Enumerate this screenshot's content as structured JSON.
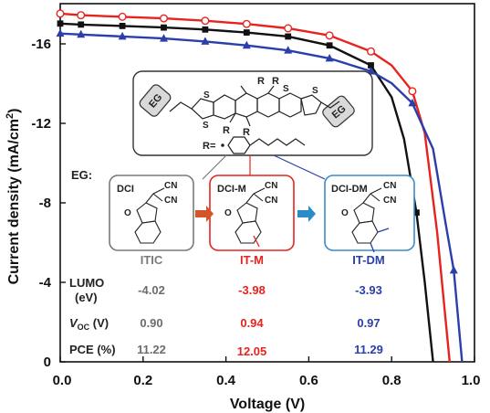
{
  "chart_data": {
    "type": "line",
    "xlabel": "Voltage (V)",
    "ylabel": "Current density (mA/cm",
    "ylabel_sup": "2",
    "ylabel_close": ")",
    "xlim": [
      0.0,
      1.0
    ],
    "ylim": [
      0,
      -18
    ],
    "x_ticks": [
      "0.0",
      "0.2",
      "0.4",
      "0.6",
      "0.8",
      "1.0"
    ],
    "y_ticks": [
      "0",
      "-4",
      "-8",
      "-12",
      "-16"
    ],
    "series": [
      {
        "color": "#e8231f",
        "marker": "open-circle",
        "x": [
          0.0,
          0.05,
          0.15,
          0.25,
          0.35,
          0.45,
          0.55,
          0.65,
          0.75,
          0.8,
          0.85,
          0.88,
          0.91,
          0.94
        ],
        "y": [
          -17.5,
          -17.42,
          -17.34,
          -17.26,
          -17.14,
          -16.98,
          -16.76,
          -16.4,
          -15.6,
          -14.9,
          -13.6,
          -11.5,
          -6.5,
          0.0
        ],
        "marker_x": [
          0.0,
          0.05,
          0.15,
          0.25,
          0.35,
          0.45,
          0.55,
          0.65,
          0.75,
          0.85
        ]
      },
      {
        "color": "#111111",
        "marker": "filled-square",
        "x": [
          0.0,
          0.05,
          0.15,
          0.25,
          0.35,
          0.45,
          0.55,
          0.65,
          0.75,
          0.8,
          0.83,
          0.86,
          0.88,
          0.9
        ],
        "y": [
          -17.0,
          -16.95,
          -16.88,
          -16.8,
          -16.7,
          -16.55,
          -16.35,
          -15.9,
          -14.9,
          -13.3,
          -11.2,
          -7.5,
          -4.0,
          0.0
        ],
        "marker_x": [
          0.0,
          0.05,
          0.15,
          0.25,
          0.35,
          0.45,
          0.55,
          0.65,
          0.75,
          0.86
        ]
      },
      {
        "color": "#2b3faa",
        "marker": "filled-triangle",
        "x": [
          0.0,
          0.05,
          0.15,
          0.25,
          0.35,
          0.45,
          0.55,
          0.65,
          0.75,
          0.8,
          0.85,
          0.9,
          0.93,
          0.95,
          0.97
        ],
        "y": [
          -16.5,
          -16.45,
          -16.35,
          -16.25,
          -16.1,
          -15.9,
          -15.65,
          -15.25,
          -14.6,
          -14.0,
          -13.0,
          -10.7,
          -7.0,
          -4.6,
          0.0
        ],
        "marker_x": [
          0.0,
          0.05,
          0.15,
          0.25,
          0.35,
          0.45,
          0.55,
          0.65,
          0.75,
          0.85,
          0.95
        ]
      }
    ]
  },
  "inset": {
    "eg_top_left": "EG",
    "eg_top_right": "EG",
    "r_label": "R",
    "r_eq": "R=",
    "eg_label": "EG:",
    "boxes": [
      {
        "tag": "DCI",
        "name": "ITIC",
        "color": "#7a7a7a"
      },
      {
        "tag": "DCI-M",
        "name": "IT-M",
        "color": "#e8231f"
      },
      {
        "tag": "DCI-DM",
        "name": "IT-DM",
        "color": "#2b3faa"
      }
    ],
    "frag_o": "O",
    "frag_cn": "CN"
  },
  "table": {
    "rows": [
      {
        "label": "LUMO",
        "sublabel": "(eV)",
        "values": [
          "-4.02",
          "-3.98",
          "-3.93"
        ]
      },
      {
        "label": "V",
        "label_sub": "OC",
        "unit": " (V)",
        "values": [
          "0.90",
          "0.94",
          "0.97"
        ]
      },
      {
        "label": "PCE (%)",
        "values": [
          "11.22",
          "12.05",
          "11.29"
        ]
      }
    ],
    "colors": [
      "#6e6e6e",
      "#e8231f",
      "#2b3faa"
    ]
  }
}
